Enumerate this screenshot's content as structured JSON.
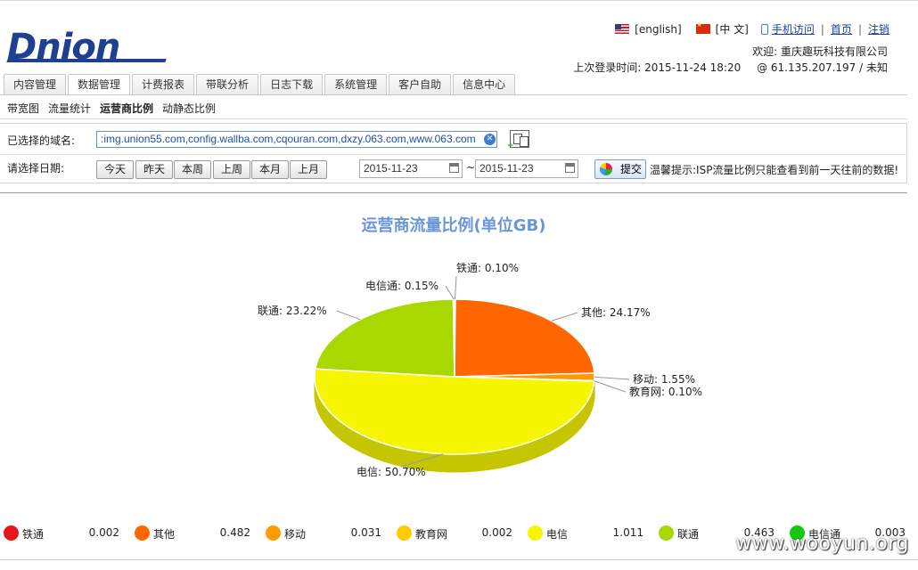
{
  "brand": {
    "logo_text": "Dnion"
  },
  "toplinks": {
    "english": "[english]",
    "chinese": "[中 文]",
    "mobile": "手机访问",
    "home": "首页",
    "logout": "注销",
    "sep": "|"
  },
  "user": {
    "welcome": "欢迎: 重庆趣玩科技有限公司",
    "last_login": "上次登录时间: 2015-11-24 18:20",
    "ip": "@ 61.135.207.197 / 未知"
  },
  "tabs": [
    "内容管理",
    "数据管理",
    "计费报表",
    "带联分析",
    "日志下载",
    "系统管理",
    "客户自助",
    "信息中心"
  ],
  "active_tab": "数据管理",
  "subnav": [
    "带宽图",
    "流量统计",
    "运营商比例",
    "动静态比例"
  ],
  "active_subnav": "运营商比例",
  "form": {
    "domain_label": "已选择的域名:",
    "domain_value": ":img.union55.com,config.wallba.com,cqouran.com,dxzy.063.com,www.063.com",
    "date_label": "请选择日期:",
    "buttons": [
      "今天",
      "昨天",
      "本周",
      "上周",
      "本月",
      "上月"
    ],
    "start_date": "2015-11-23",
    "tilde": "~",
    "end_date": "2015-11-23",
    "submit": "提交",
    "hint": "温馨提示:ISP流量比例只能查看到前一天往前的数据!"
  },
  "chart_data": {
    "type": "pie",
    "title": "运营商流量比例(单位GB)",
    "slices": [
      {
        "name": "铁通",
        "percent": 0.1,
        "value": 0.002,
        "color": "#e8141a",
        "label": "铁通: 0.10%"
      },
      {
        "name": "其他",
        "percent": 24.17,
        "value": 0.482,
        "color": "#ff6600",
        "label": "其他: 24.17%"
      },
      {
        "name": "移动",
        "percent": 1.55,
        "value": 0.031,
        "color": "#ff9a00",
        "label": "移动: 1.55%"
      },
      {
        "name": "教育网",
        "percent": 0.1,
        "value": 0.002,
        "color": "#ffcc00",
        "label": "教育网: 0.10%"
      },
      {
        "name": "电信",
        "percent": 50.7,
        "value": 1.011,
        "color": "#f6f600",
        "label": "电信: 50.70%"
      },
      {
        "name": "联通",
        "percent": 23.22,
        "value": 0.463,
        "color": "#a8d800",
        "label": "联通: 23.22%"
      },
      {
        "name": "电信通",
        "percent": 0.15,
        "value": 0.003,
        "color": "#12c812",
        "label": "电信通: 0.15%"
      }
    ],
    "legend_values": [
      "0.002",
      "0.482",
      "0.031",
      "0.002",
      "1.011",
      "0.463",
      "0.003"
    ]
  },
  "watermark": "www.wooyun.org"
}
